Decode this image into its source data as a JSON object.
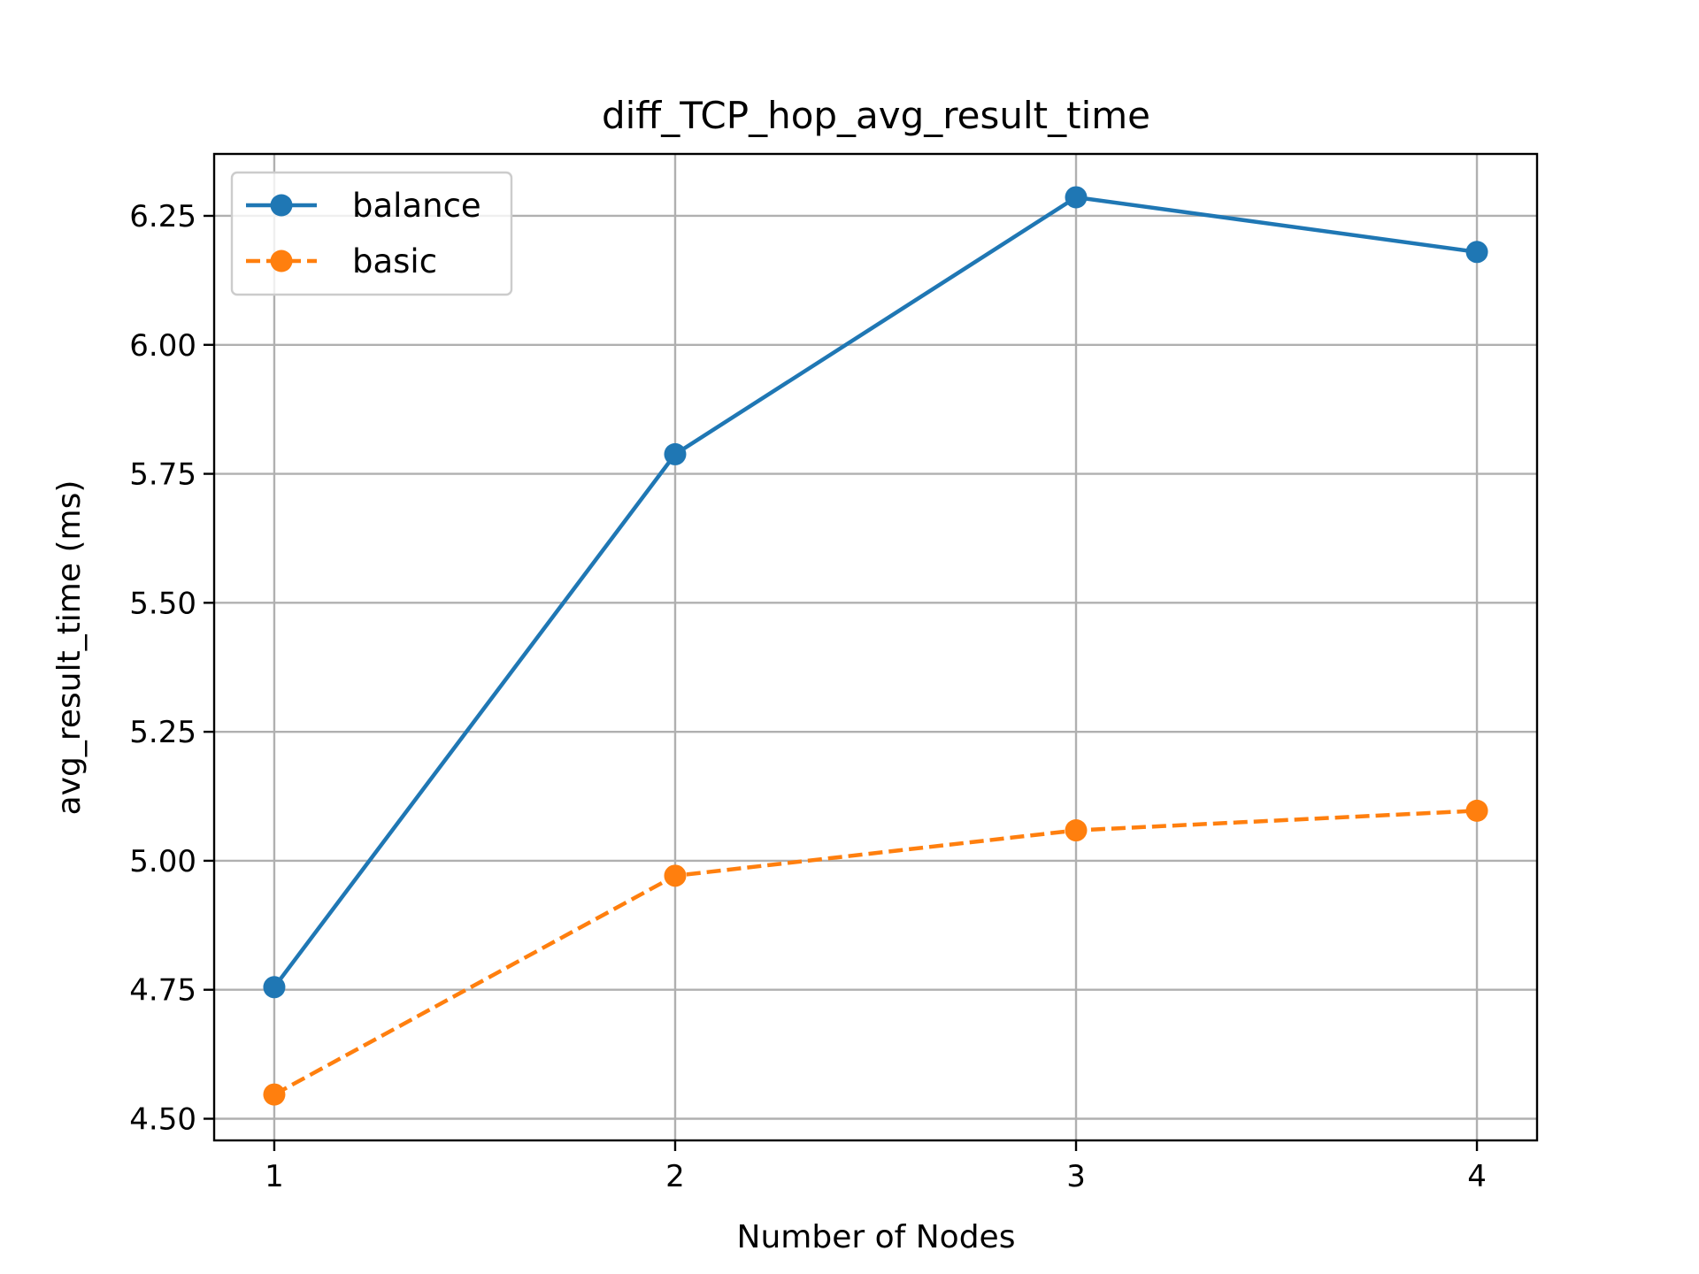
{
  "chart_data": {
    "type": "line",
    "title": "diff_TCP_hop_avg_result_time",
    "xlabel": "Number of Nodes",
    "ylabel": "avg_result_time (ms)",
    "x": [
      1,
      2,
      3,
      4
    ],
    "xlim": [
      0.85,
      4.15
    ],
    "ylim": [
      4.458,
      6.37
    ],
    "xticks": [
      1,
      2,
      3,
      4
    ],
    "yticks": [
      4.5,
      4.75,
      5.0,
      5.25,
      5.5,
      5.75,
      6.0,
      6.25
    ],
    "ytick_labels": [
      "4.50",
      "4.75",
      "5.00",
      "5.25",
      "5.50",
      "5.75",
      "6.00",
      "6.25"
    ],
    "grid": true,
    "legend_position": "top-left",
    "series": [
      {
        "name": "balance",
        "values": [
          4.755,
          5.788,
          6.286,
          6.18
        ],
        "color": "#1f77b4",
        "linestyle": "solid",
        "marker": "circle"
      },
      {
        "name": "basic",
        "values": [
          4.547,
          4.971,
          5.059,
          5.097
        ],
        "color": "#ff7f0e",
        "linestyle": "dashed",
        "marker": "circle"
      }
    ]
  }
}
